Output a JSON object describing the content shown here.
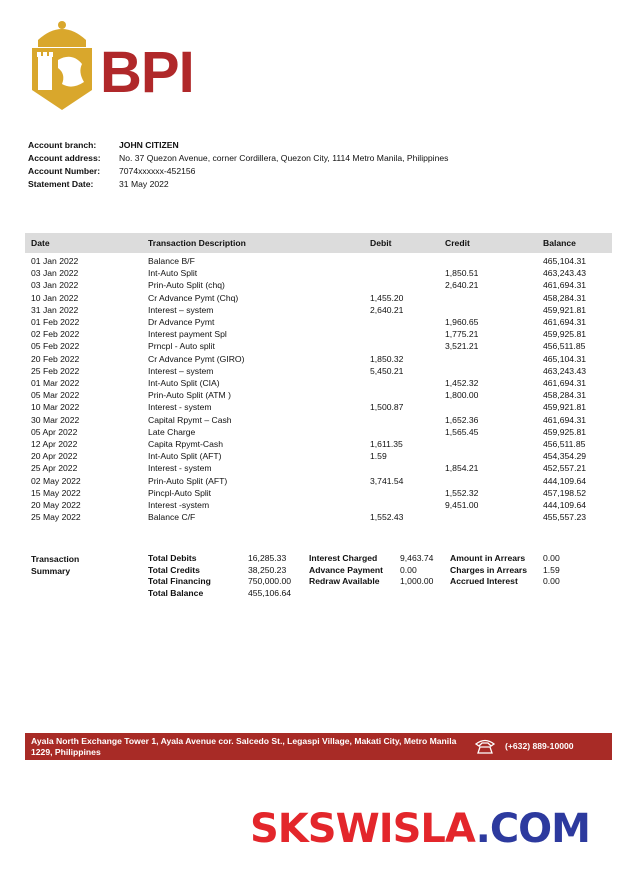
{
  "header": {
    "brand": "BPI"
  },
  "account": [
    {
      "label": "Account branch:",
      "value": "JOHN CITIZEN"
    },
    {
      "label": "Account address:",
      "value": "No. 37 Quezon Avenue, corner Cordillera, Quezon City, 1114 Metro Manila, Philippines"
    },
    {
      "label": "Account Number:",
      "value": "7074xxxxxx-452156"
    },
    {
      "label": "Statement Date:",
      "value": "31 May 2022"
    }
  ],
  "table": {
    "columns": [
      "Date",
      "Transaction Description",
      "Debit",
      "Credit",
      "Balance"
    ],
    "rows": [
      [
        "01 Jan 2022",
        "Balance B/F",
        null,
        null,
        "465,104.31"
      ],
      [
        "03 Jan 2022",
        "Int-Auto Split",
        null,
        "1,850.51",
        "463,243.43"
      ],
      [
        "03 Jan 2022",
        "Prin-Auto Split (chq)",
        null,
        "2,640.21",
        "461,694.31"
      ],
      [
        "10 Jan 2022",
        "Cr Advance Pymt (Chq)",
        "1,455.20",
        null,
        "458,284.31"
      ],
      [
        "31 Jan 2022",
        "Interest – system",
        "2,640.21",
        null,
        "459,921.81"
      ],
      [
        "01 Feb 2022",
        "Dr Advance Pymt",
        null,
        "1,960.65",
        "461,694.31"
      ],
      [
        "02 Feb 2022",
        "Interest payment Spl",
        null,
        "1,775.21",
        "459,925.81"
      ],
      [
        "05 Feb 2022",
        "Prncpl  - Auto split",
        null,
        "3,521.21",
        "456,511.85"
      ],
      [
        "20 Feb 2022",
        "Cr Advance Pymt (GIRO)",
        "1,850.32",
        null,
        "465,104.31"
      ],
      [
        "25 Feb 2022",
        "Interest – system",
        "5,450.21",
        null,
        "463,243.43"
      ],
      [
        "01 Mar 2022",
        "Int-Auto Split (CIA)",
        null,
        "1,452.32",
        "461,694.31"
      ],
      [
        "05 Mar 2022",
        "Prin-Auto Split (ATM )",
        null,
        "1,800.00",
        "458,284.31"
      ],
      [
        "10 Mar 2022",
        "Interest  - system",
        "1,500.87",
        null,
        "459,921.81"
      ],
      [
        "30 Mar 2022",
        "Capital Rpymt – Cash",
        null,
        "1,652.36",
        "461,694.31"
      ],
      [
        "05 Apr 2022",
        "Late Charge",
        null,
        "1,565.45",
        "459,925.81"
      ],
      [
        "12 Apr 2022",
        "Capita Rpymt-Cash",
        "1,611.35",
        null,
        "456,511.85"
      ],
      [
        "20 Apr 2022",
        "Int-Auto Split (AFT)",
        "1.59",
        null,
        "454,354.29"
      ],
      [
        "25 Apr 2022",
        "Interest - system",
        null,
        "1,854.21",
        "452,557.21"
      ],
      [
        "02 May 2022",
        "Prin-Auto Split (AFT)",
        "3,741.54",
        null,
        "444,109.64"
      ],
      [
        "15 May 2022",
        "Pincpl-Auto Split",
        null,
        "1,552.32",
        "457,198.52"
      ],
      [
        "20 May 2022",
        "Interest -system",
        null,
        "9,451.00",
        "444,109.64"
      ],
      [
        "25 May 2022",
        "Balance C/F",
        "1,552.43",
        null,
        "455,557.23"
      ]
    ]
  },
  "summary": {
    "title": "Transaction Summary",
    "groups": [
      [
        {
          "label": "Total Debits",
          "value": "16,285.33"
        },
        {
          "label": "Total Credits",
          "value": "38,250.23"
        },
        {
          "label": "Total Financing",
          "value": "750,000.00"
        },
        {
          "label": "Total Balance",
          "value": "455,106.64"
        }
      ],
      [
        {
          "label": "Interest Charged",
          "value": "9,463.74"
        },
        {
          "label": "Advance Payment",
          "value": "0.00"
        },
        {
          "label": "Redraw Available",
          "value": "1,000.00"
        }
      ],
      [
        {
          "label": "Amount in Arrears",
          "value": "0.00"
        },
        {
          "label": "Charges in Arrears",
          "value": "1.59"
        },
        {
          "label": "Accrued Interest",
          "value": "0.00"
        }
      ]
    ]
  },
  "footer": {
    "address": "Ayala North Exchange Tower 1, Ayala Avenue cor. Salcedo St., Legaspi Village, Makati City, Metro Manila 1229, Philippines",
    "phone": "(+632) 889-10000"
  },
  "watermark": {
    "name": "SKSWISLA",
    "domain": ".COM"
  }
}
